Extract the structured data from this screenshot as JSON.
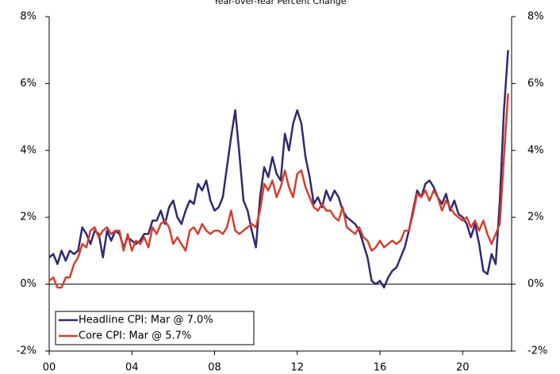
{
  "chart_data": {
    "type": "line",
    "title": "Year-over-Year Percent Change",
    "x": [
      0,
      0.2,
      0.4,
      0.6,
      0.8,
      1,
      1.2,
      1.4,
      1.6,
      1.8,
      2,
      2.2,
      2.4,
      2.6,
      2.8,
      3,
      3.2,
      3.4,
      3.6,
      3.8,
      4,
      4.2,
      4.4,
      4.6,
      4.8,
      5,
      5.2,
      5.4,
      5.6,
      5.8,
      6,
      6.2,
      6.4,
      6.6,
      6.8,
      7,
      7.2,
      7.4,
      7.6,
      7.8,
      8,
      8.2,
      8.4,
      8.6,
      8.8,
      9,
      9.2,
      9.4,
      9.6,
      9.8,
      10,
      10.2,
      10.4,
      10.6,
      10.8,
      11,
      11.2,
      11.4,
      11.6,
      11.8,
      12,
      12.2,
      12.4,
      12.6,
      12.8,
      13,
      13.2,
      13.4,
      13.6,
      13.8,
      14,
      14.2,
      14.4,
      14.6,
      14.8,
      15,
      15.2,
      15.4,
      15.6,
      15.8,
      16,
      16.2,
      16.4,
      16.6,
      16.8,
      17,
      17.2,
      17.4,
      17.6,
      17.8,
      18,
      18.2,
      18.4,
      18.6,
      18.8,
      19,
      19.2,
      19.4,
      19.6,
      19.8,
      20,
      20.2,
      20.4,
      20.6,
      20.8,
      21,
      21.2,
      21.4,
      21.6,
      21.8,
      22,
      22.2
    ],
    "series": [
      {
        "name": "Headline CPI: Mar @ 7.0%",
        "color": "#2e2a72",
        "values": [
          0.8,
          0.9,
          0.6,
          1.0,
          0.7,
          1.0,
          0.9,
          1.0,
          1.7,
          1.5,
          1.2,
          1.6,
          1.5,
          0.8,
          1.6,
          1.3,
          1.6,
          1.5,
          1.1,
          1.4,
          1.3,
          1.2,
          1.3,
          1.5,
          1.5,
          1.9,
          1.9,
          2.2,
          1.8,
          2.3,
          2.5,
          2.0,
          1.8,
          2.2,
          2.5,
          2.4,
          3.0,
          2.8,
          3.1,
          2.5,
          2.2,
          2.3,
          2.6,
          3.5,
          4.4,
          5.2,
          3.9,
          2.5,
          2.2,
          1.6,
          1.1,
          2.6,
          3.5,
          3.2,
          3.8,
          3.3,
          3.1,
          4.5,
          4.0,
          4.8,
          5.2,
          4.8,
          3.8,
          3.2,
          2.4,
          2.6,
          2.3,
          2.8,
          2.5,
          2.8,
          2.6,
          2.2,
          2.0,
          1.9,
          1.8,
          1.6,
          1.2,
          0.8,
          0.1,
          0.0,
          0.1,
          -0.1,
          0.2,
          0.4,
          0.5,
          0.8,
          1.1,
          1.6,
          2.2,
          2.8,
          2.6,
          3.0,
          3.1,
          2.9,
          2.6,
          2.4,
          2.7,
          2.2,
          2.5,
          2.1,
          2.0,
          1.8,
          1.4,
          1.8,
          1.2,
          0.4,
          0.3,
          0.9,
          0.6,
          2.5,
          5.2,
          7.0
        ]
      },
      {
        "name": "Core CPI: Mar @ 5.7%",
        "color": "#d93d2a",
        "values": [
          0.1,
          0.2,
          -0.1,
          -0.1,
          0.2,
          0.2,
          0.6,
          0.8,
          1.2,
          1.1,
          1.6,
          1.7,
          1.4,
          1.6,
          1.7,
          1.5,
          1.6,
          1.6,
          1.0,
          1.5,
          1.0,
          1.3,
          1.2,
          1.4,
          1.1,
          1.7,
          1.5,
          1.8,
          1.9,
          1.7,
          1.2,
          1.4,
          1.2,
          1.0,
          1.6,
          1.7,
          1.5,
          1.8,
          1.6,
          1.5,
          1.6,
          1.6,
          1.5,
          1.7,
          2.2,
          1.6,
          1.5,
          1.6,
          1.7,
          1.8,
          1.7,
          2.2,
          3.0,
          2.8,
          3.1,
          2.6,
          2.9,
          3.4,
          2.9,
          2.6,
          3.3,
          3.4,
          2.9,
          2.6,
          2.3,
          2.2,
          2.4,
          2.2,
          2.2,
          2.0,
          1.9,
          2.3,
          1.7,
          1.6,
          1.5,
          1.7,
          1.4,
          1.3,
          1.0,
          1.1,
          1.3,
          1.1,
          1.2,
          1.3,
          1.2,
          1.3,
          1.6,
          1.6,
          2.1,
          2.7,
          2.6,
          2.8,
          2.5,
          2.8,
          2.6,
          2.2,
          2.5,
          2.3,
          2.1,
          2.0,
          1.9,
          2.0,
          1.7,
          1.9,
          1.6,
          1.9,
          1.5,
          1.2,
          1.5,
          1.8,
          3.8,
          5.7
        ]
      }
    ],
    "xlim": [
      0,
      22.37
    ],
    "xticks": [
      {
        "value": 0,
        "label": "00"
      },
      {
        "value": 4,
        "label": "04"
      },
      {
        "value": 8,
        "label": "08"
      },
      12,
      16,
      20
    ],
    "ylim": [
      -2,
      8
    ],
    "yticks": [
      {
        "value": -2,
        "label": "-2%"
      },
      {
        "value": 0,
        "label": "0%"
      },
      {
        "value": 2,
        "label": "2%"
      },
      {
        "value": 4,
        "label": "4%"
      },
      {
        "value": 6,
        "label": "6%"
      },
      {
        "value": 8,
        "label": "8%"
      }
    ],
    "y2lim": [
      -2,
      8
    ],
    "y2ticks": [
      {
        "value": -2,
        "label": "-2%"
      },
      {
        "value": 0,
        "label": "0%"
      },
      {
        "value": 2,
        "label": "2%"
      },
      {
        "value": 4,
        "label": "4%"
      },
      {
        "value": 6,
        "label": "6%"
      },
      {
        "value": 8,
        "label": "8%"
      }
    ],
    "grid": false,
    "legend": "lower left"
  }
}
